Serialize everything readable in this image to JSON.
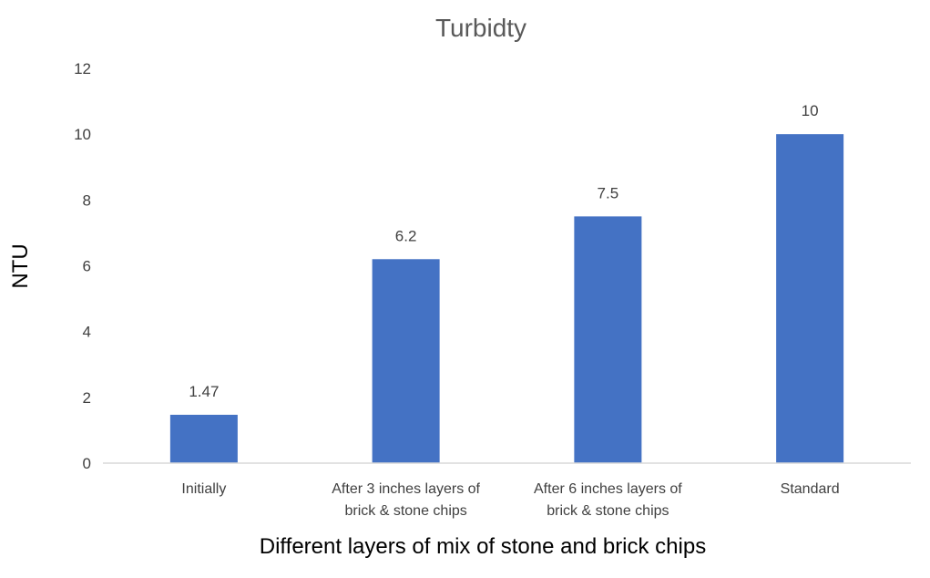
{
  "chart_data": {
    "type": "bar",
    "title": "Turbidty",
    "xlabel": "Different layers of mix of stone and brick chips",
    "ylabel": "NTU",
    "categories": [
      [
        "Initially"
      ],
      [
        "After 3 inches layers of",
        "brick & stone chips"
      ],
      [
        "After 6 inches layers of",
        "brick & stone chips"
      ],
      [
        "Standard"
      ]
    ],
    "values": [
      1.47,
      6.2,
      7.5,
      10
    ],
    "value_labels": [
      "1.47",
      "6.2",
      "7.5",
      "10"
    ],
    "ylim": [
      0,
      12
    ],
    "yticks": [
      "0",
      "2",
      "4",
      "6",
      "8",
      "10",
      "12"
    ],
    "grid": false,
    "legend": "none",
    "colors": {
      "bar": "#4472C4",
      "axis_line": "#D9D9D9"
    }
  }
}
